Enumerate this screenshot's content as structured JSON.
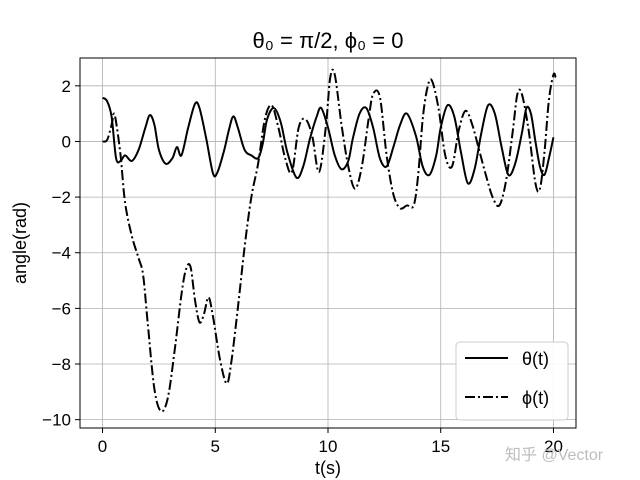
{
  "chart_data": {
    "type": "line",
    "title": "θ₀ = π/2, ϕ₀ = 0",
    "xlabel": "t(s)",
    "ylabel": "angle(rad)",
    "xlim": [
      -1,
      21
    ],
    "ylim": [
      -10.3,
      3.0
    ],
    "xticks": [
      0,
      5,
      10,
      15,
      20
    ],
    "yticks": [
      2,
      0,
      -2,
      -4,
      -6,
      -8,
      -10
    ],
    "xtick_labels": [
      "0",
      "5",
      "10",
      "15",
      "20"
    ],
    "ytick_labels": [
      "2",
      "0",
      "−2",
      "−4",
      "−6",
      "−8",
      "−10"
    ],
    "grid": true,
    "legend_position": "lower-right",
    "series": [
      {
        "name": "θ(t)",
        "style": "solid",
        "color": "#000000",
        "points": [
          [
            0.0,
            1.57
          ],
          [
            0.2,
            1.45
          ],
          [
            0.4,
            0.9
          ],
          [
            0.6,
            -0.6
          ],
          [
            0.8,
            -0.7
          ],
          [
            1.0,
            -0.5
          ],
          [
            1.3,
            -0.7
          ],
          [
            1.6,
            -0.3
          ],
          [
            1.9,
            0.5
          ],
          [
            2.1,
            0.95
          ],
          [
            2.3,
            0.6
          ],
          [
            2.5,
            -0.3
          ],
          [
            2.8,
            -0.8
          ],
          [
            3.1,
            -0.6
          ],
          [
            3.3,
            -0.2
          ],
          [
            3.5,
            -0.5
          ],
          [
            3.8,
            0.5
          ],
          [
            4.1,
            1.35
          ],
          [
            4.3,
            1.2
          ],
          [
            4.6,
            0.1
          ],
          [
            4.9,
            -1.15
          ],
          [
            5.1,
            -1.1
          ],
          [
            5.4,
            -0.3
          ],
          [
            5.6,
            0.4
          ],
          [
            5.8,
            0.9
          ],
          [
            6.0,
            0.5
          ],
          [
            6.3,
            -0.3
          ],
          [
            6.6,
            -0.5
          ],
          [
            6.9,
            -0.6
          ],
          [
            7.1,
            -0.1
          ],
          [
            7.3,
            0.8
          ],
          [
            7.6,
            1.2
          ],
          [
            7.9,
            0.7
          ],
          [
            8.2,
            -0.4
          ],
          [
            8.6,
            -1.3
          ],
          [
            8.9,
            -0.9
          ],
          [
            9.2,
            0.1
          ],
          [
            9.5,
            0.9
          ],
          [
            9.7,
            1.2
          ],
          [
            10.0,
            0.5
          ],
          [
            10.3,
            -0.5
          ],
          [
            10.6,
            -1.0
          ],
          [
            10.9,
            -0.7
          ],
          [
            11.1,
            0.1
          ],
          [
            11.4,
            1.0
          ],
          [
            11.7,
            1.2
          ],
          [
            12.0,
            0.5
          ],
          [
            12.3,
            -0.6
          ],
          [
            12.6,
            -0.9
          ],
          [
            12.9,
            -0.2
          ],
          [
            13.2,
            0.6
          ],
          [
            13.5,
            1.0
          ],
          [
            13.9,
            0.2
          ],
          [
            14.2,
            -0.9
          ],
          [
            14.5,
            -1.2
          ],
          [
            14.8,
            -0.5
          ],
          [
            15.0,
            0.5
          ],
          [
            15.3,
            1.3
          ],
          [
            15.6,
            0.9
          ],
          [
            15.9,
            -0.4
          ],
          [
            16.2,
            -1.5
          ],
          [
            16.5,
            -1.0
          ],
          [
            16.8,
            0.3
          ],
          [
            17.1,
            1.3
          ],
          [
            17.4,
            1.0
          ],
          [
            17.7,
            -0.2
          ],
          [
            18.0,
            -1.2
          ],
          [
            18.3,
            -0.8
          ],
          [
            18.6,
            0.3
          ],
          [
            18.8,
            1.2
          ],
          [
            19.0,
            1.0
          ],
          [
            19.2,
            0.0
          ],
          [
            19.4,
            -0.9
          ],
          [
            19.6,
            -1.2
          ],
          [
            19.8,
            -0.6
          ],
          [
            20.0,
            0.15
          ]
        ]
      },
      {
        "name": "ϕ(t)",
        "style": "dashdot",
        "color": "#000000",
        "points": [
          [
            0.0,
            0.0
          ],
          [
            0.2,
            0.05
          ],
          [
            0.4,
            0.6
          ],
          [
            0.5,
            1.0
          ],
          [
            0.6,
            0.7
          ],
          [
            0.8,
            -0.5
          ],
          [
            1.0,
            -2.2
          ],
          [
            1.3,
            -3.4
          ],
          [
            1.6,
            -4.2
          ],
          [
            1.8,
            -4.8
          ],
          [
            2.0,
            -6.5
          ],
          [
            2.3,
            -8.9
          ],
          [
            2.6,
            -9.7
          ],
          [
            2.9,
            -9.2
          ],
          [
            3.2,
            -7.5
          ],
          [
            3.5,
            -5.5
          ],
          [
            3.7,
            -4.6
          ],
          [
            3.9,
            -4.5
          ],
          [
            4.1,
            -5.7
          ],
          [
            4.3,
            -6.5
          ],
          [
            4.5,
            -6.2
          ],
          [
            4.7,
            -5.6
          ],
          [
            4.9,
            -6.3
          ],
          [
            5.2,
            -7.8
          ],
          [
            5.5,
            -8.7
          ],
          [
            5.7,
            -8.0
          ],
          [
            6.0,
            -6.0
          ],
          [
            6.3,
            -3.8
          ],
          [
            6.6,
            -2.0
          ],
          [
            6.9,
            -0.8
          ],
          [
            7.2,
            0.8
          ],
          [
            7.5,
            1.3
          ],
          [
            7.8,
            0.5
          ],
          [
            8.1,
            -0.6
          ],
          [
            8.4,
            -1.1
          ],
          [
            8.7,
            0.5
          ],
          [
            9.0,
            0.8
          ],
          [
            9.3,
            0.2
          ],
          [
            9.6,
            -1.1
          ],
          [
            9.9,
            0.5
          ],
          [
            10.1,
            2.3
          ],
          [
            10.3,
            2.4
          ],
          [
            10.6,
            0.6
          ],
          [
            10.9,
            -0.9
          ],
          [
            11.2,
            -1.7
          ],
          [
            11.5,
            -0.9
          ],
          [
            11.8,
            0.8
          ],
          [
            12.0,
            1.7
          ],
          [
            12.3,
            1.6
          ],
          [
            12.6,
            -0.5
          ],
          [
            12.9,
            -1.9
          ],
          [
            13.2,
            -2.4
          ],
          [
            13.5,
            -2.3
          ],
          [
            13.8,
            -2.3
          ],
          [
            14.0,
            -1.2
          ],
          [
            14.2,
            0.8
          ],
          [
            14.4,
            1.9
          ],
          [
            14.6,
            2.2
          ],
          [
            14.9,
            1.2
          ],
          [
            15.2,
            -0.5
          ],
          [
            15.5,
            -0.9
          ],
          [
            15.8,
            0.4
          ],
          [
            16.1,
            1.1
          ],
          [
            16.4,
            0.6
          ],
          [
            16.7,
            -0.3
          ],
          [
            17.0,
            -1.2
          ],
          [
            17.3,
            -2.0
          ],
          [
            17.6,
            -2.3
          ],
          [
            17.9,
            -1.4
          ],
          [
            18.2,
            0.4
          ],
          [
            18.4,
            1.7
          ],
          [
            18.6,
            1.7
          ],
          [
            18.9,
            0.4
          ],
          [
            19.2,
            -1.5
          ],
          [
            19.4,
            -1.7
          ],
          [
            19.6,
            -0.4
          ],
          [
            19.8,
            1.5
          ],
          [
            20.0,
            2.4
          ],
          [
            20.1,
            2.3
          ]
        ]
      }
    ]
  },
  "watermark": "知乎 @Vector"
}
